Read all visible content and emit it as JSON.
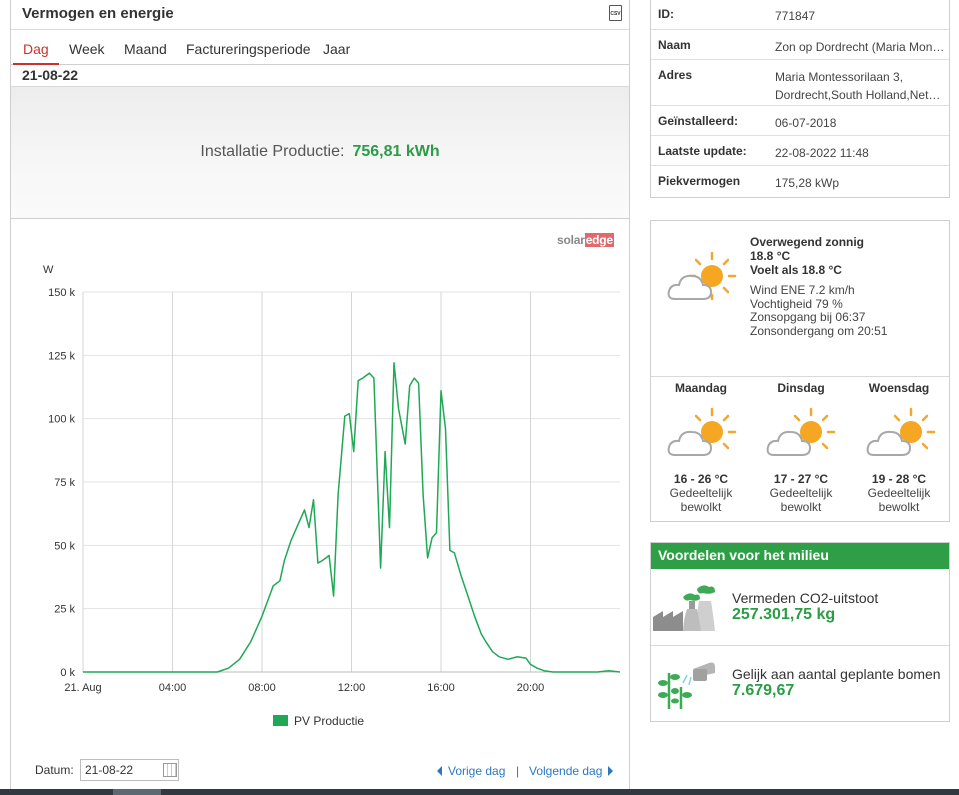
{
  "panel": {
    "title": "Vermogen en energie",
    "csv_label": "CSV",
    "tabs": [
      "Dag",
      "Week",
      "Maand",
      "Factureringsperiode",
      "Jaar"
    ],
    "active_tab": "Dag",
    "date": "21-08-22",
    "production_label": "Installatie Productie:",
    "production_value": "756,81 kWh",
    "logo_a": "solar",
    "logo_b": "edge",
    "accent_color": "#c8332c",
    "value_color": "#2a9d46"
  },
  "chart_data": {
    "type": "line",
    "ylabel": "W",
    "y_ticks": [
      "0 k",
      "25 k",
      "50 k",
      "75 k",
      "100 k",
      "125 k",
      "150 k"
    ],
    "x_ticks": [
      "21. Aug",
      "04:00",
      "08:00",
      "12:00",
      "16:00",
      "20:00"
    ],
    "ylim": [
      0,
      150000
    ],
    "xlim_hours": [
      0,
      24
    ],
    "grid": true,
    "series": [
      {
        "name": "PV Productie",
        "color": "#1fa855",
        "x": [
          0,
          6.0,
          6.5,
          7.0,
          7.5,
          8.0,
          8.5,
          8.8,
          9.0,
          9.3,
          9.6,
          9.9,
          10.1,
          10.3,
          10.5,
          10.7,
          11.0,
          11.2,
          11.4,
          11.7,
          11.9,
          12.1,
          12.3,
          12.5,
          12.8,
          13.0,
          13.3,
          13.5,
          13.7,
          13.9,
          14.1,
          14.4,
          14.6,
          14.8,
          15.0,
          15.2,
          15.4,
          15.6,
          15.8,
          16.0,
          16.2,
          16.4,
          16.6,
          16.9,
          17.2,
          17.5,
          17.8,
          18.0,
          18.3,
          18.6,
          19.0,
          19.4,
          19.8,
          20.0,
          20.3,
          20.6,
          21.0,
          22.0,
          23.0,
          23.5,
          24.0
        ],
        "y": [
          0,
          0,
          1500,
          5000,
          12000,
          22000,
          34000,
          36000,
          44000,
          52000,
          58000,
          64000,
          57000,
          68000,
          43000,
          44000,
          46000,
          30000,
          70000,
          101000,
          102000,
          87000,
          115000,
          116000,
          118000,
          116000,
          41000,
          87000,
          57000,
          122000,
          104000,
          90000,
          113000,
          116000,
          114000,
          70000,
          45000,
          53000,
          55000,
          111000,
          96000,
          48000,
          47000,
          38000,
          30000,
          22000,
          15000,
          12000,
          8000,
          6000,
          5000,
          6000,
          5500,
          3000,
          1500,
          500,
          0,
          0,
          0,
          500,
          0
        ]
      }
    ]
  },
  "datum": {
    "label": "Datum:",
    "value": "21-08-22",
    "prev": "Vorige dag",
    "sep": "|",
    "next": "Volgende dag"
  },
  "info": [
    {
      "key": "ID:",
      "value": "771847"
    },
    {
      "key": "Naam",
      "value": "Zon op Dordrecht (Maria Mon…"
    },
    {
      "key": "Adres",
      "value": "Maria Montessorilaan 3,",
      "value2": "Dordrecht,South Holland,Net…"
    },
    {
      "key": "Geïnstalleerd:",
      "value": "06-07-2018"
    },
    {
      "key": "Laatste update:",
      "value": "22-08-2022 11:48"
    },
    {
      "key": "Piekvermogen",
      "value": "175,28 kWp"
    }
  ],
  "weather": {
    "icon": "partly-sunny-icon",
    "condition": "Overwegend zonnig",
    "temp": "18.8 °C",
    "feels": "Voelt als 18.8 °C",
    "wind": "Wind ENE 7.2 km/h",
    "humidity": "Vochtigheid 79 %",
    "sunrise": "Zonsopgang bij 06:37",
    "sunset": "Zonsondergang om 20:51",
    "forecast": [
      {
        "day": "Maandag",
        "temp": "16 - 26 °C",
        "cond1": "Gedeeltelijk",
        "cond2": "bewolkt"
      },
      {
        "day": "Dinsdag",
        "temp": "17 - 27 °C",
        "cond1": "Gedeeltelijk",
        "cond2": "bewolkt"
      },
      {
        "day": "Woensdag",
        "temp": "19 - 28 °C",
        "cond1": "Gedeeltelijk",
        "cond2": "bewolkt"
      }
    ]
  },
  "env": {
    "title": "Voordelen voor het milieu",
    "co2_label": "Vermeden CO2-uitstoot",
    "co2_value": "257.301,75 kg",
    "trees_label": "Gelijk aan aantal geplante bomen",
    "trees_value": "7.679,67",
    "header_color": "#2e9f46"
  }
}
